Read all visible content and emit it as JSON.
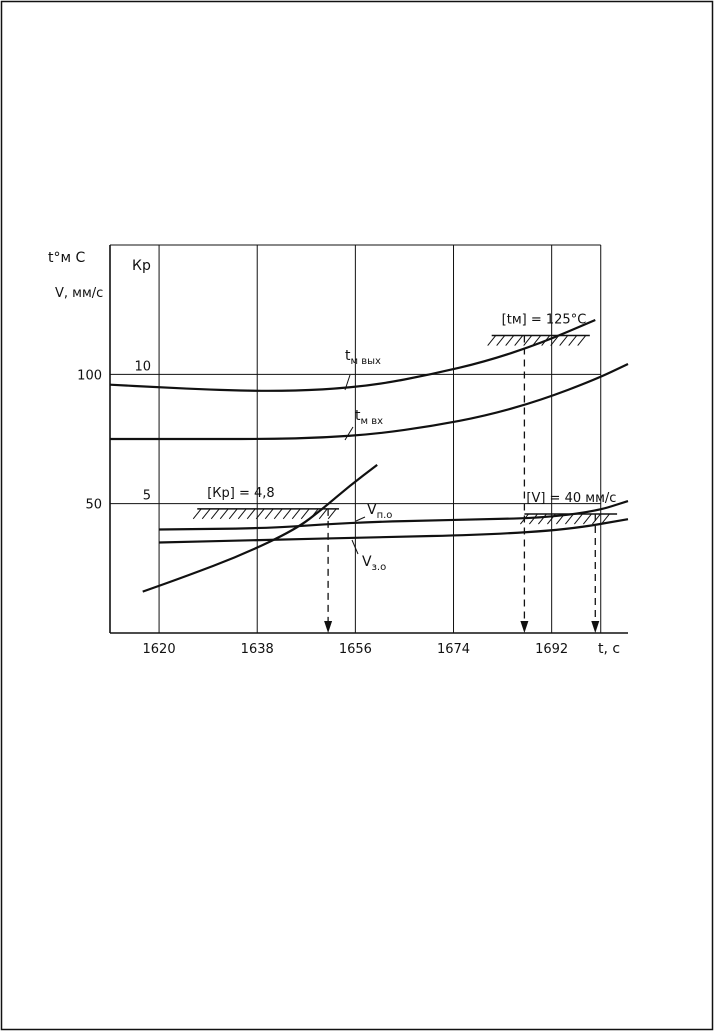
{
  "chart_data": {
    "type": "line",
    "x_axis": {
      "label": "t, с",
      "ticks": [
        1620,
        1638,
        1656,
        1674,
        1692
      ],
      "range": [
        1611,
        1706
      ]
    },
    "y_axis_left": {
      "label_top": "t°м С",
      "label_bottom": "V, мм/с",
      "ticks": [
        50,
        100
      ],
      "range": [
        0,
        150
      ]
    },
    "y_axis_right": {
      "label": "Кр",
      "ticks": [
        5,
        10
      ],
      "range": [
        0,
        15
      ]
    },
    "grid": true,
    "series": [
      {
        "name": "tм вых",
        "label_main": "t",
        "label_sub": "м вых",
        "axis": "left",
        "points": [
          [
            1611,
            96
          ],
          [
            1620,
            95
          ],
          [
            1630,
            94
          ],
          [
            1640,
            93.5
          ],
          [
            1650,
            94
          ],
          [
            1660,
            96
          ],
          [
            1670,
            100
          ],
          [
            1680,
            105
          ],
          [
            1690,
            112
          ],
          [
            1700,
            121
          ]
        ]
      },
      {
        "name": "tм вх",
        "label_main": "t",
        "label_sub": "м вх",
        "axis": "left",
        "points": [
          [
            1611,
            75
          ],
          [
            1620,
            75
          ],
          [
            1630,
            75
          ],
          [
            1640,
            75
          ],
          [
            1650,
            75.5
          ],
          [
            1660,
            77
          ],
          [
            1670,
            80
          ],
          [
            1680,
            84
          ],
          [
            1690,
            90
          ],
          [
            1700,
            98
          ],
          [
            1706,
            104
          ]
        ]
      },
      {
        "name": "Кр",
        "label_main": "",
        "label_sub": "",
        "axis": "right",
        "points": [
          [
            1617,
            1.6
          ],
          [
            1625,
            2.2
          ],
          [
            1635,
            3.0
          ],
          [
            1645,
            4.0
          ],
          [
            1650,
            4.8
          ],
          [
            1655,
            5.7
          ],
          [
            1660,
            6.5
          ]
        ]
      },
      {
        "name": "Vп.о",
        "label_main": "V",
        "label_sub": "п.о",
        "axis": "left",
        "points": [
          [
            1620,
            40
          ],
          [
            1640,
            40.5
          ],
          [
            1650,
            42
          ],
          [
            1660,
            43
          ],
          [
            1670,
            43.5
          ],
          [
            1680,
            44
          ],
          [
            1690,
            44.5
          ],
          [
            1700,
            47
          ],
          [
            1706,
            51
          ]
        ]
      },
      {
        "name": "Vз.о",
        "label_main": "V",
        "label_sub": "з.о",
        "axis": "left",
        "points": [
          [
            1620,
            35
          ],
          [
            1640,
            36
          ],
          [
            1660,
            37
          ],
          [
            1680,
            38
          ],
          [
            1695,
            40
          ],
          [
            1706,
            44
          ]
        ]
      }
    ],
    "limits": [
      {
        "label": "[tм] = 125°С",
        "value": 115,
        "x_from": 1681,
        "x_to": 1699,
        "marker_x": 1687
      },
      {
        "label": "[Кр] = 4,8",
        "value": 4.8,
        "x_from": 1627,
        "x_to": 1653,
        "marker_x": 1651
      },
      {
        "label": "[V] = 40 мм/с",
        "value": 46,
        "x_from": 1687,
        "x_to": 1704,
        "marker_x": 1700
      }
    ]
  }
}
